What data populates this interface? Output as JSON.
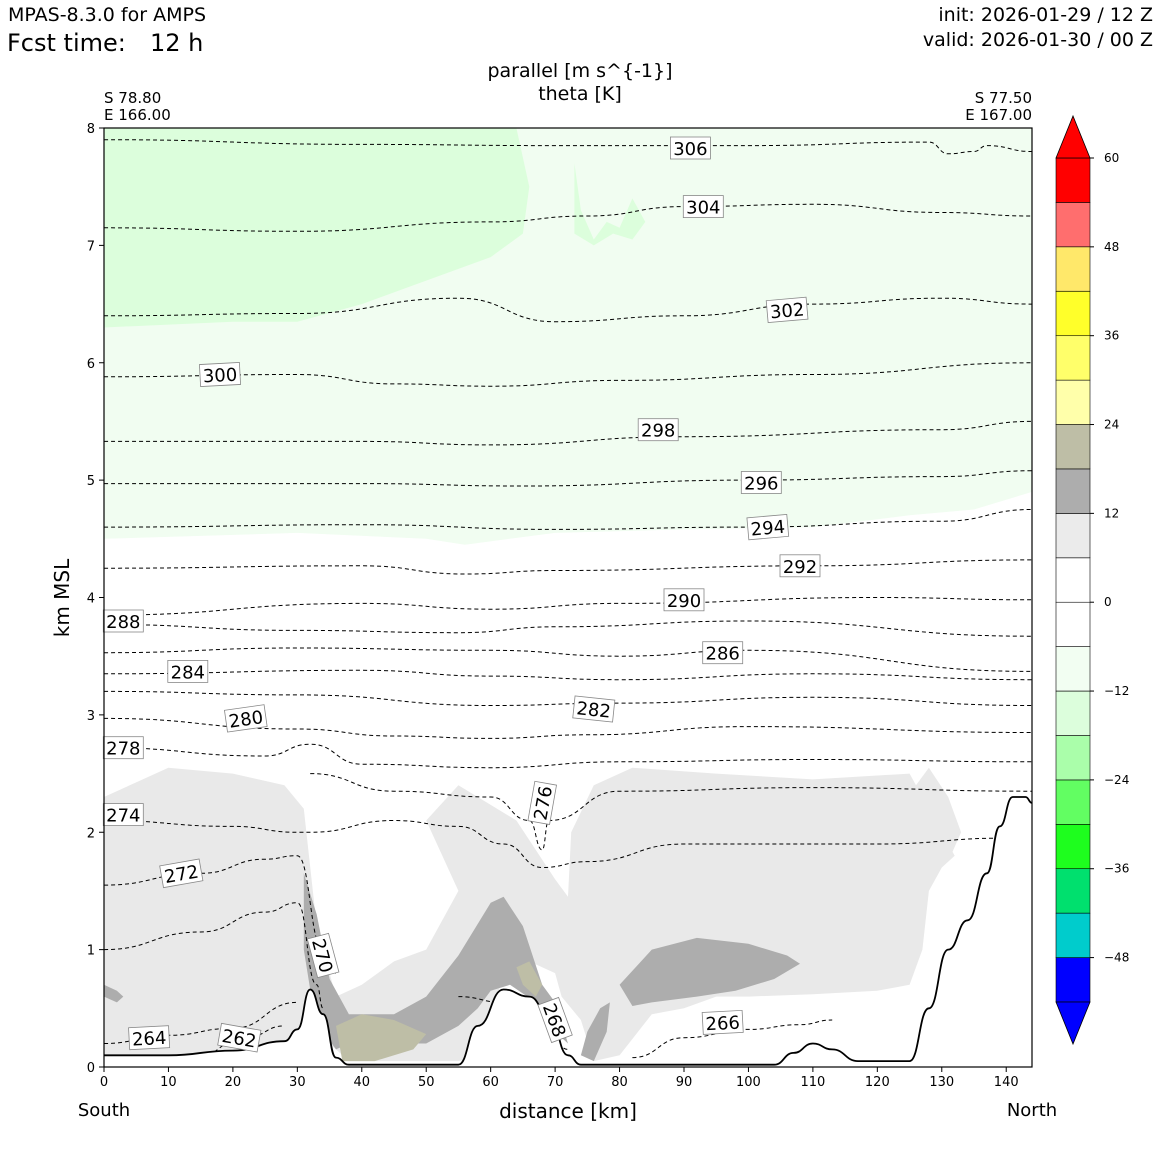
{
  "header": {
    "model": "MPAS-8.3.0 for AMPS",
    "fcst_label": "Fcst time:",
    "fcst_value": "12 h",
    "init": "init: 2026-01-29 / 12 Z",
    "valid": "valid: 2026-01-30 / 00 Z"
  },
  "chart_data": {
    "type": "cross-section",
    "title": "parallel [m s^{-1}]",
    "subtitle": "theta [K]",
    "xlabel": "distance [km]",
    "ylabel": "km MSL",
    "xlim": [
      0,
      144
    ],
    "ylim": [
      0,
      8
    ],
    "xticks": [
      0,
      10,
      20,
      30,
      40,
      50,
      60,
      70,
      80,
      90,
      100,
      110,
      120,
      130,
      140
    ],
    "yticks": [
      0,
      1,
      2,
      3,
      4,
      5,
      6,
      7,
      8
    ],
    "left_end": {
      "lat": "S 78.80",
      "lon": "E 166.00",
      "dir": "South"
    },
    "right_end": {
      "lat": "S 77.50",
      "lon": "E 167.00",
      "dir": "North"
    },
    "terrain": [
      [
        0,
        0.1
      ],
      [
        10,
        0.1
      ],
      [
        20,
        0.14
      ],
      [
        28,
        0.22
      ],
      [
        30,
        0.32
      ],
      [
        32,
        0.66
      ],
      [
        34,
        0.45
      ],
      [
        36,
        0.08
      ],
      [
        38,
        0.02
      ],
      [
        55,
        0.02
      ],
      [
        58,
        0.35
      ],
      [
        62,
        0.66
      ],
      [
        66,
        0.6
      ],
      [
        69,
        0.45
      ],
      [
        72,
        0.1
      ],
      [
        74,
        0.02
      ],
      [
        104,
        0.02
      ],
      [
        107,
        0.12
      ],
      [
        110,
        0.2
      ],
      [
        113,
        0.15
      ],
      [
        117,
        0.05
      ],
      [
        125,
        0.05
      ],
      [
        128,
        0.5
      ],
      [
        131,
        1.0
      ],
      [
        134,
        1.25
      ],
      [
        137,
        1.65
      ],
      [
        139,
        2.05
      ],
      [
        141,
        2.3
      ],
      [
        143,
        2.3
      ],
      [
        144,
        2.25
      ]
    ],
    "theta_contours": [
      {
        "label": "306",
        "points": [
          [
            0,
            7.9
          ],
          [
            40,
            7.86
          ],
          [
            70,
            7.85
          ],
          [
            100,
            7.85
          ],
          [
            128,
            7.88
          ],
          [
            131,
            7.78
          ],
          [
            135,
            7.8
          ],
          [
            137,
            7.85
          ],
          [
            144,
            7.8
          ]
        ],
        "label_at": [
          91,
          7.83
        ],
        "label_angle": 0
      },
      {
        "label": "304",
        "points": [
          [
            0,
            7.15
          ],
          [
            30,
            7.12
          ],
          [
            60,
            7.2
          ],
          [
            75,
            7.25
          ],
          [
            90,
            7.33
          ],
          [
            110,
            7.35
          ],
          [
            130,
            7.28
          ],
          [
            144,
            7.25
          ]
        ],
        "label_at": [
          93,
          7.33
        ],
        "label_angle": 0
      },
      {
        "label": "302",
        "points": [
          [
            0,
            6.4
          ],
          [
            30,
            6.42
          ],
          [
            55,
            6.55
          ],
          [
            70,
            6.35
          ],
          [
            90,
            6.4
          ],
          [
            110,
            6.5
          ],
          [
            130,
            6.55
          ],
          [
            144,
            6.5
          ]
        ],
        "label_at": [
          106,
          6.45
        ],
        "label_angle": -5
      },
      {
        "label": "300",
        "points": [
          [
            0,
            5.88
          ],
          [
            30,
            5.9
          ],
          [
            45,
            5.82
          ],
          [
            60,
            5.8
          ],
          [
            80,
            5.85
          ],
          [
            110,
            5.9
          ],
          [
            144,
            6.0
          ]
        ],
        "label_at": [
          18,
          5.9
        ],
        "label_angle": -3
      },
      {
        "label": "298",
        "points": [
          [
            0,
            5.33
          ],
          [
            40,
            5.33
          ],
          [
            60,
            5.3
          ],
          [
            90,
            5.37
          ],
          [
            130,
            5.43
          ],
          [
            144,
            5.5
          ]
        ],
        "label_at": [
          86,
          5.43
        ],
        "label_angle": 0
      },
      {
        "label": "296",
        "points": [
          [
            0,
            4.97
          ],
          [
            40,
            4.97
          ],
          [
            65,
            4.95
          ],
          [
            100,
            5.0
          ],
          [
            130,
            5.03
          ],
          [
            144,
            5.08
          ]
        ],
        "label_at": [
          102,
          4.98
        ],
        "label_angle": 0
      },
      {
        "label": "294",
        "points": [
          [
            0,
            4.6
          ],
          [
            40,
            4.62
          ],
          [
            70,
            4.58
          ],
          [
            100,
            4.6
          ],
          [
            130,
            4.65
          ],
          [
            144,
            4.75
          ]
        ],
        "label_at": [
          103,
          4.6
        ],
        "label_angle": -5
      },
      {
        "label": "292",
        "points": [
          [
            0,
            4.25
          ],
          [
            40,
            4.27
          ],
          [
            56,
            4.2
          ],
          [
            70,
            4.23
          ],
          [
            110,
            4.27
          ],
          [
            144,
            4.32
          ]
        ],
        "label_at": [
          108,
          4.27
        ],
        "label_angle": 0
      },
      {
        "label": "290",
        "points": [
          [
            0,
            3.85
          ],
          [
            40,
            3.95
          ],
          [
            60,
            3.9
          ],
          [
            80,
            3.95
          ],
          [
            120,
            4.0
          ],
          [
            144,
            3.98
          ]
        ],
        "label_at": [
          90,
          3.98
        ],
        "label_angle": 0
      },
      {
        "label": "288",
        "points": [
          [
            0,
            3.77
          ],
          [
            30,
            3.72
          ],
          [
            55,
            3.7
          ],
          [
            70,
            3.75
          ],
          [
            100,
            3.8
          ],
          [
            144,
            3.67
          ]
        ],
        "label_at": [
          3,
          3.8
        ],
        "label_angle": 0
      },
      {
        "label": "286",
        "points": [
          [
            0,
            3.53
          ],
          [
            30,
            3.57
          ],
          [
            60,
            3.55
          ],
          [
            80,
            3.5
          ],
          [
            100,
            3.55
          ],
          [
            144,
            3.37
          ]
        ],
        "label_at": [
          96,
          3.53
        ],
        "label_angle": 0
      },
      {
        "label": "284",
        "points": [
          [
            0,
            3.35
          ],
          [
            40,
            3.38
          ],
          [
            60,
            3.33
          ],
          [
            80,
            3.3
          ],
          [
            110,
            3.35
          ],
          [
            144,
            3.3
          ]
        ],
        "label_at": [
          13,
          3.37
        ],
        "label_angle": 0
      },
      {
        "label": "282",
        "points": [
          [
            0,
            3.2
          ],
          [
            30,
            3.17
          ],
          [
            60,
            3.08
          ],
          [
            80,
            3.1
          ],
          [
            110,
            3.15
          ],
          [
            144,
            3.08
          ]
        ],
        "label_at": [
          76,
          3.05
        ],
        "label_angle": 6
      },
      {
        "label": "280",
        "points": [
          [
            0,
            2.97
          ],
          [
            30,
            2.88
          ],
          [
            45,
            2.82
          ],
          [
            60,
            2.8
          ],
          [
            75,
            2.83
          ],
          [
            100,
            2.9
          ],
          [
            144,
            2.85
          ]
        ],
        "label_at": [
          22,
          2.97
        ],
        "label_angle": -8
      },
      {
        "label": "278",
        "points": [
          [
            0,
            2.72
          ],
          [
            25,
            2.65
          ],
          [
            32,
            2.75
          ],
          [
            40,
            2.58
          ],
          [
            60,
            2.55
          ],
          [
            80,
            2.6
          ],
          [
            110,
            2.62
          ],
          [
            144,
            2.6
          ]
        ],
        "label_at": [
          3,
          2.72
        ],
        "label_angle": 0
      },
      {
        "label": "276",
        "points": [
          [
            32,
            2.5
          ],
          [
            45,
            2.35
          ],
          [
            60,
            2.3
          ],
          [
            66,
            2.1
          ],
          [
            68,
            1.85
          ],
          [
            69,
            2.1
          ],
          [
            80,
            2.35
          ],
          [
            110,
            2.38
          ],
          [
            144,
            2.35
          ]
        ],
        "label_at": [
          68,
          2.25
        ],
        "label_angle": -80
      },
      {
        "label": "274",
        "points": [
          [
            0,
            2.1
          ],
          [
            20,
            2.05
          ],
          [
            30,
            2.0
          ],
          [
            32,
            2.0
          ],
          [
            45,
            2.1
          ],
          [
            55,
            2.05
          ],
          [
            62,
            1.9
          ],
          [
            68,
            1.7
          ],
          [
            75,
            1.75
          ],
          [
            90,
            1.9
          ],
          [
            120,
            1.9
          ],
          [
            140,
            1.95
          ]
        ],
        "label_at": [
          3,
          2.15
        ],
        "label_angle": 0
      },
      {
        "label": "272",
        "points": [
          [
            0,
            1.55
          ],
          [
            15,
            1.65
          ],
          [
            25,
            1.77
          ],
          [
            30,
            1.8
          ],
          [
            34,
            1.0
          ],
          [
            36,
            0.8
          ]
        ],
        "label_at": [
          12,
          1.65
        ],
        "label_angle": -10
      },
      {
        "label": "270",
        "points": [
          [
            0,
            1.0
          ],
          [
            15,
            1.15
          ],
          [
            25,
            1.32
          ],
          [
            30,
            1.4
          ],
          [
            33,
            0.7
          ],
          [
            34,
            0.5
          ]
        ],
        "label_at": [
          34,
          0.95
        ],
        "label_angle": 75
      },
      {
        "label": "266",
        "points": [
          [
            82,
            0.08
          ],
          [
            90,
            0.25
          ],
          [
            100,
            0.32
          ],
          [
            108,
            0.36
          ],
          [
            113,
            0.4
          ]
        ],
        "label_at": [
          96,
          0.38
        ],
        "label_angle": -3
      },
      {
        "label": "264",
        "points": [
          [
            0,
            0.2
          ],
          [
            10,
            0.27
          ],
          [
            20,
            0.33
          ],
          [
            30,
            0.55
          ]
        ],
        "label_at": [
          7,
          0.25
        ],
        "label_angle": -3
      },
      {
        "label": "262",
        "points": [
          [
            14,
            0.08
          ],
          [
            22,
            0.25
          ],
          [
            28,
            0.35
          ]
        ],
        "label_at": [
          21,
          0.25
        ],
        "label_angle": 10
      },
      {
        "label": "268",
        "points": [
          [
            55,
            0.6
          ],
          [
            62,
            0.55
          ],
          [
            68,
            0.4
          ],
          [
            72,
            0.15
          ]
        ],
        "label_at": [
          70,
          0.4
        ],
        "label_angle": 70
      }
    ],
    "wind_fill": [
      {
        "level": "-12 to -6",
        "color": "#dcfedc",
        "region": "upper-left"
      },
      {
        "level": "-6 to 0",
        "color": "#f1fdf1",
        "region": "middle"
      },
      {
        "level": "6 to 12",
        "color": "#e9e9e9",
        "region": "lower"
      },
      {
        "level": "12 to 18",
        "color": "#adadad",
        "region": "lower"
      },
      {
        "level": "18 to 24",
        "color": "#bebea6",
        "region": "lower"
      }
    ],
    "colorbar": {
      "bins": [
        {
          "color": "#0000ff"
        },
        {
          "color": "#00cccc"
        },
        {
          "color": "#00e06e"
        },
        {
          "color": "#1efe1e"
        },
        {
          "color": "#62fe62"
        },
        {
          "color": "#aafeaa"
        },
        {
          "color": "#dcfedc"
        },
        {
          "color": "#f2fef2"
        },
        {
          "color": "#ffffff"
        },
        {
          "color": "#ffffff"
        },
        {
          "color": "#ebebeb"
        },
        {
          "color": "#adadad"
        },
        {
          "color": "#bebea6"
        },
        {
          "color": "#ffffaa"
        },
        {
          "color": "#ffff6a"
        },
        {
          "color": "#ffff2a"
        },
        {
          "color": "#ffe86a"
        },
        {
          "color": "#ff6e6e"
        },
        {
          "color": "#ff0000"
        }
      ],
      "under_color": "#0000ff",
      "over_color": "#ff0000",
      "ticks": [
        "60",
        "48",
        "36",
        "24",
        "12",
        "0",
        "−12",
        "−24",
        "−36",
        "−48"
      ]
    }
  }
}
